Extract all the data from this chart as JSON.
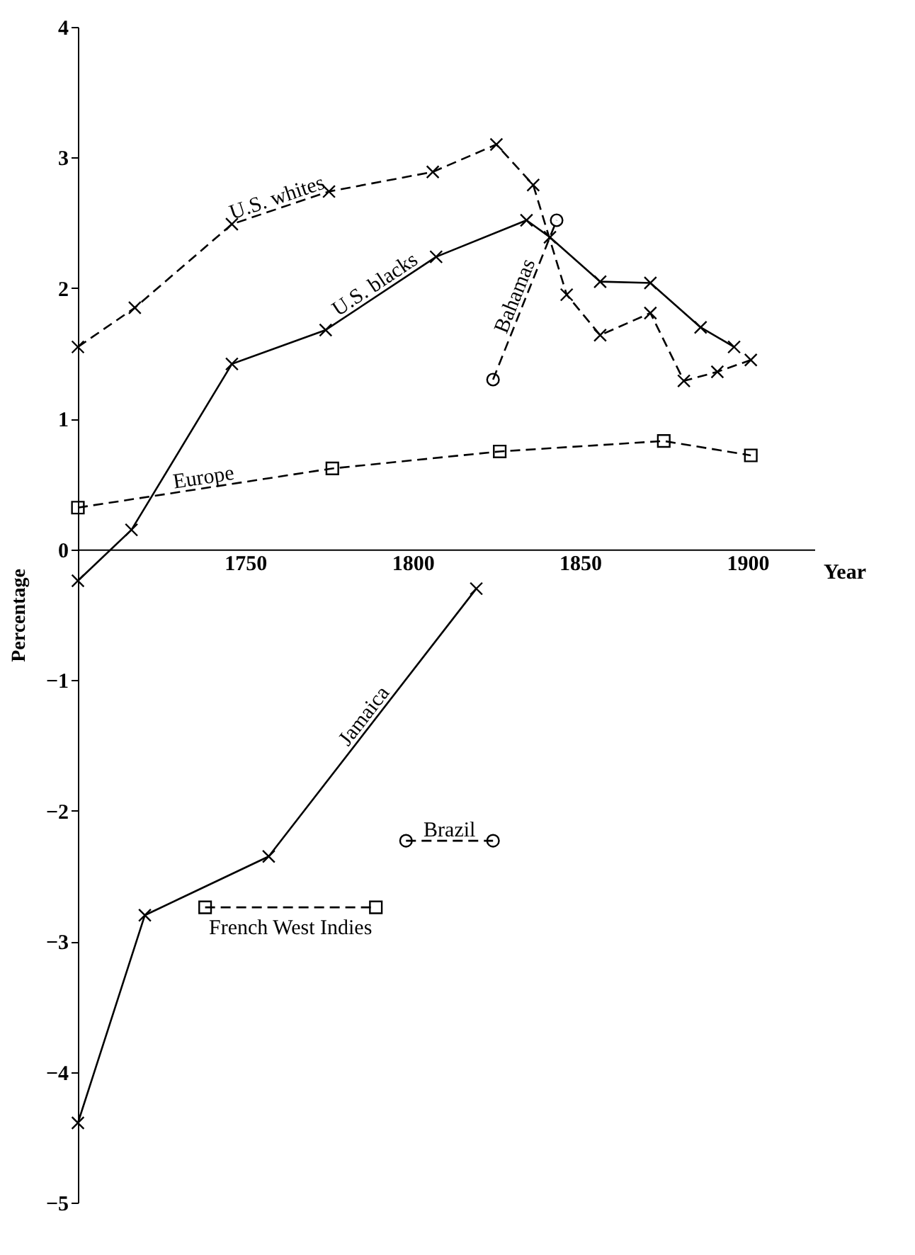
{
  "chart_data": {
    "type": "line",
    "xlabel": "Year",
    "ylabel": "Percentage",
    "xlim": [
      1700,
      1920
    ],
    "ylim": [
      -5,
      4
    ],
    "xticks": [
      1750,
      1800,
      1850,
      1900
    ],
    "yticks": [
      -5,
      -4,
      -3,
      -2,
      -1,
      0,
      1,
      2,
      3,
      4
    ],
    "grid": false,
    "series": [
      {
        "name": "U.S. whites",
        "color": "#000000",
        "line_style": "dashed",
        "marker": "cross",
        "x": [
          1700,
          1717,
          1746,
          1775,
          1806,
          1825,
          1836,
          1846,
          1856,
          1871,
          1881,
          1891,
          1901
        ],
        "values": [
          1.55,
          1.85,
          2.49,
          2.74,
          2.89,
          3.1,
          2.79,
          1.95,
          1.64,
          1.81,
          1.29,
          1.36,
          1.45
        ]
      },
      {
        "name": "U.S. blacks",
        "color": "#000000",
        "line_style": "solid",
        "marker": "cross",
        "x": [
          1700,
          1716,
          1746,
          1774,
          1807,
          1834,
          1841,
          1856,
          1871,
          1886,
          1896
        ],
        "values": [
          -0.24,
          0.15,
          1.42,
          1.68,
          2.24,
          2.52,
          2.39,
          2.05,
          2.04,
          1.7,
          1.55
        ]
      },
      {
        "name": "Bahamas",
        "color": "#000000",
        "line_style": "dashed",
        "marker": "circle",
        "x": [
          1824,
          1843
        ],
        "values": [
          1.3,
          2.52
        ]
      },
      {
        "name": "Europe",
        "color": "#000000",
        "line_style": "dashed",
        "marker": "square",
        "x": [
          1700,
          1776,
          1826,
          1875,
          1901
        ],
        "values": [
          0.32,
          0.62,
          0.75,
          0.83,
          0.72
        ]
      },
      {
        "name": "Jamaica",
        "color": "#000000",
        "line_style": "solid",
        "marker": "cross",
        "x": [
          1700,
          1720,
          1757,
          1819
        ],
        "values": [
          -4.39,
          -2.8,
          -2.35,
          -0.3
        ]
      },
      {
        "name": "Brazil",
        "color": "#000000",
        "line_style": "dashed",
        "marker": "circle",
        "x": [
          1798,
          1824
        ],
        "values": [
          -2.23,
          -2.23
        ]
      },
      {
        "name": "French West Indies",
        "color": "#000000",
        "line_style": "dashed",
        "marker": "square",
        "x": [
          1738,
          1789
        ],
        "values": [
          -2.74,
          -2.74
        ]
      }
    ]
  }
}
